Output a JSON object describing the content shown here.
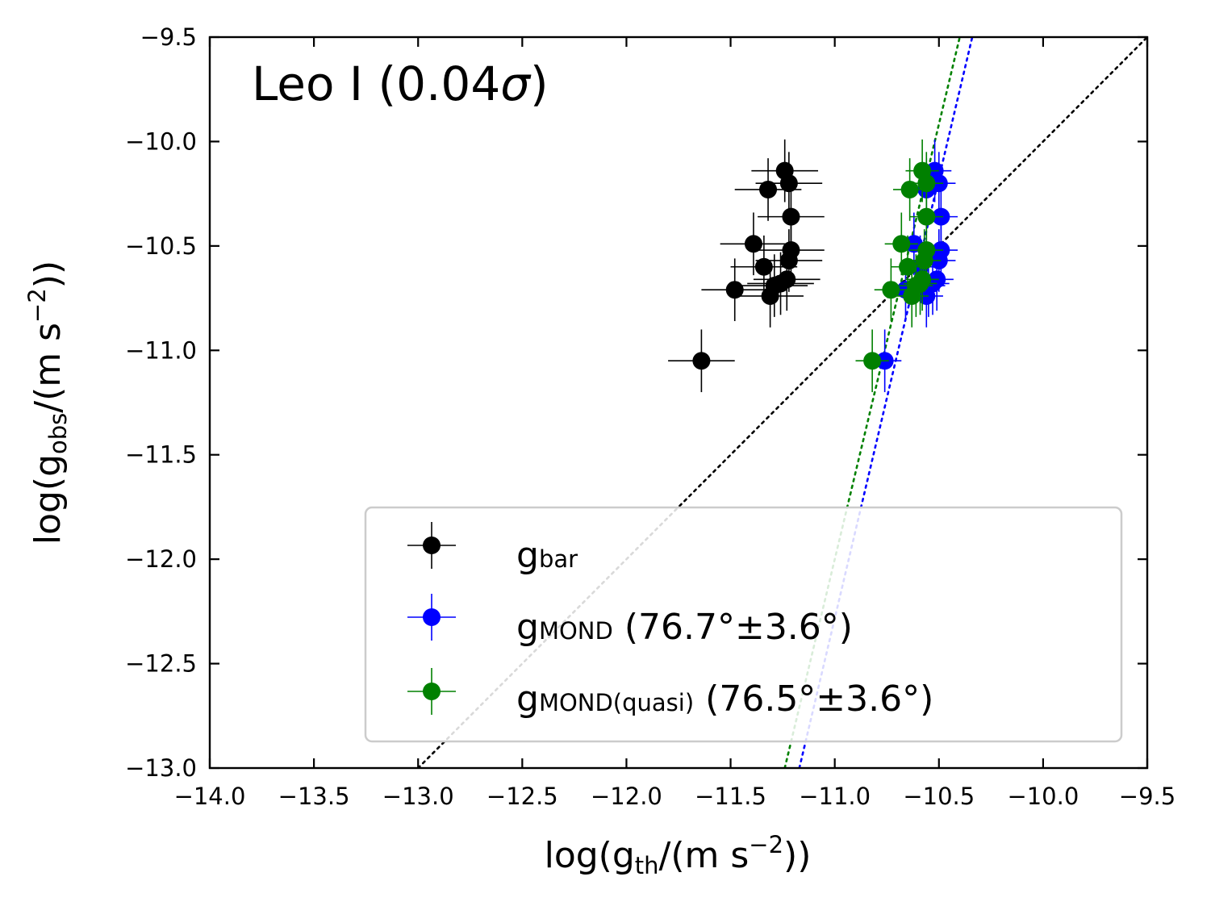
{
  "chart_data": {
    "type": "scatter",
    "title": "Leo I (0.04σ)",
    "title_name": "Leo I",
    "title_sigma": "0.04",
    "xlabel": {
      "prefix": "log(g",
      "sub": "th",
      "mid": "/(m s",
      "sup": "−2",
      "suffix": "))"
    },
    "ylabel": {
      "prefix": "log(g",
      "sub": "obs",
      "mid": "/(m s",
      "sup": "−2",
      "suffix": "))"
    },
    "xlim": [
      -14.0,
      -9.5
    ],
    "ylim": [
      -13.0,
      -9.5
    ],
    "xticks": [
      -14.0,
      -13.5,
      -13.0,
      -12.5,
      -12.0,
      -11.5,
      -11.0,
      -10.5,
      -10.0,
      -9.5
    ],
    "yticks": [
      -13.0,
      -12.5,
      -12.0,
      -11.5,
      -11.0,
      -10.5,
      -10.0,
      -9.5
    ],
    "xtick_labels": [
      "−14.0",
      "−13.5",
      "−13.0",
      "−12.5",
      "−12.0",
      "−11.5",
      "−11.0",
      "−10.5",
      "−10.0",
      "−9.5"
    ],
    "ytick_labels": [
      "−13.0",
      "−12.5",
      "−12.0",
      "−11.5",
      "−11.0",
      "−10.5",
      "−10.0",
      "−9.5"
    ],
    "legend_position": "lower right",
    "series": [
      {
        "name": "g_bar",
        "legend_main": "g",
        "legend_sub": "bar",
        "legend_extra": "",
        "color": "#000000",
        "points": [
          {
            "x": -11.64,
            "y": -11.05,
            "xerr": 0.16,
            "yerr": 0.15
          },
          {
            "x": -11.48,
            "y": -10.71,
            "xerr": 0.16,
            "yerr": 0.15
          },
          {
            "x": -11.39,
            "y": -10.49,
            "xerr": 0.16,
            "yerr": 0.15
          },
          {
            "x": -11.34,
            "y": -10.6,
            "xerr": 0.16,
            "yerr": 0.15
          },
          {
            "x": -11.31,
            "y": -10.74,
            "xerr": 0.16,
            "yerr": 0.15
          },
          {
            "x": -11.29,
            "y": -10.69,
            "xerr": 0.16,
            "yerr": 0.15
          },
          {
            "x": -11.26,
            "y": -10.68,
            "xerr": 0.16,
            "yerr": 0.15
          },
          {
            "x": -11.23,
            "y": -10.66,
            "xerr": 0.16,
            "yerr": 0.15
          },
          {
            "x": -11.32,
            "y": -10.23,
            "xerr": 0.16,
            "yerr": 0.15
          },
          {
            "x": -11.24,
            "y": -10.14,
            "xerr": 0.16,
            "yerr": 0.15
          },
          {
            "x": -11.22,
            "y": -10.2,
            "xerr": 0.16,
            "yerr": 0.15
          },
          {
            "x": -11.21,
            "y": -10.36,
            "xerr": 0.16,
            "yerr": 0.15
          },
          {
            "x": -11.21,
            "y": -10.52,
            "xerr": 0.16,
            "yerr": 0.15
          },
          {
            "x": -11.22,
            "y": -10.57,
            "xerr": 0.16,
            "yerr": 0.15
          }
        ]
      },
      {
        "name": "g_MOND (76.7°±3.6°)",
        "legend_main": "g",
        "legend_sub": "MOND",
        "legend_extra": "(76.7°±3.6°)",
        "color": "#0000ff",
        "points": [
          {
            "x": -10.76,
            "y": -11.05,
            "xerr": 0.08,
            "yerr": 0.15
          },
          {
            "x": -10.66,
            "y": -10.71,
            "xerr": 0.08,
            "yerr": 0.15
          },
          {
            "x": -10.62,
            "y": -10.49,
            "xerr": 0.08,
            "yerr": 0.15
          },
          {
            "x": -10.59,
            "y": -10.6,
            "xerr": 0.08,
            "yerr": 0.15
          },
          {
            "x": -10.56,
            "y": -10.74,
            "xerr": 0.08,
            "yerr": 0.15
          },
          {
            "x": -10.55,
            "y": -10.69,
            "xerr": 0.08,
            "yerr": 0.15
          },
          {
            "x": -10.53,
            "y": -10.68,
            "xerr": 0.08,
            "yerr": 0.15
          },
          {
            "x": -10.51,
            "y": -10.66,
            "xerr": 0.08,
            "yerr": 0.15
          },
          {
            "x": -10.56,
            "y": -10.23,
            "xerr": 0.08,
            "yerr": 0.15
          },
          {
            "x": -10.52,
            "y": -10.14,
            "xerr": 0.08,
            "yerr": 0.15
          },
          {
            "x": -10.5,
            "y": -10.2,
            "xerr": 0.08,
            "yerr": 0.15
          },
          {
            "x": -10.49,
            "y": -10.36,
            "xerr": 0.08,
            "yerr": 0.15
          },
          {
            "x": -10.49,
            "y": -10.52,
            "xerr": 0.08,
            "yerr": 0.15
          },
          {
            "x": -10.5,
            "y": -10.57,
            "xerr": 0.08,
            "yerr": 0.15
          }
        ]
      },
      {
        "name": "g_MOND(quasi) (76.5°±3.6°)",
        "legend_main": "g",
        "legend_sub": "MOND(quasi)",
        "legend_extra": "(76.5°±3.6°)",
        "color": "#008000",
        "points": [
          {
            "x": -10.82,
            "y": -11.05,
            "xerr": 0.08,
            "yerr": 0.15
          },
          {
            "x": -10.73,
            "y": -10.71,
            "xerr": 0.08,
            "yerr": 0.15
          },
          {
            "x": -10.68,
            "y": -10.49,
            "xerr": 0.08,
            "yerr": 0.15
          },
          {
            "x": -10.65,
            "y": -10.6,
            "xerr": 0.08,
            "yerr": 0.15
          },
          {
            "x": -10.63,
            "y": -10.74,
            "xerr": 0.08,
            "yerr": 0.15
          },
          {
            "x": -10.61,
            "y": -10.69,
            "xerr": 0.08,
            "yerr": 0.15
          },
          {
            "x": -10.59,
            "y": -10.68,
            "xerr": 0.08,
            "yerr": 0.15
          },
          {
            "x": -10.58,
            "y": -10.66,
            "xerr": 0.08,
            "yerr": 0.15
          },
          {
            "x": -10.64,
            "y": -10.23,
            "xerr": 0.08,
            "yerr": 0.15
          },
          {
            "x": -10.58,
            "y": -10.14,
            "xerr": 0.08,
            "yerr": 0.15
          },
          {
            "x": -10.56,
            "y": -10.2,
            "xerr": 0.08,
            "yerr": 0.15
          },
          {
            "x": -10.56,
            "y": -10.36,
            "xerr": 0.08,
            "yerr": 0.15
          },
          {
            "x": -10.56,
            "y": -10.52,
            "xerr": 0.08,
            "yerr": 0.15
          },
          {
            "x": -10.57,
            "y": -10.57,
            "xerr": 0.08,
            "yerr": 0.15
          }
        ]
      }
    ],
    "lines": [
      {
        "name": "one-to-one",
        "color": "#000000",
        "style": "dotted",
        "from": [
          -13.0,
          -13.0
        ],
        "to": [
          -9.5,
          -9.5
        ]
      },
      {
        "name": "fit-mond",
        "color": "#0000ff",
        "style": "dotted",
        "from": [
          -11.17,
          -13.0
        ],
        "to": [
          -10.34,
          -9.5
        ]
      },
      {
        "name": "fit-mond-quasi",
        "color": "#008000",
        "style": "dotted",
        "from": [
          -11.24,
          -13.0
        ],
        "to": [
          -10.4,
          -9.5
        ]
      }
    ]
  }
}
